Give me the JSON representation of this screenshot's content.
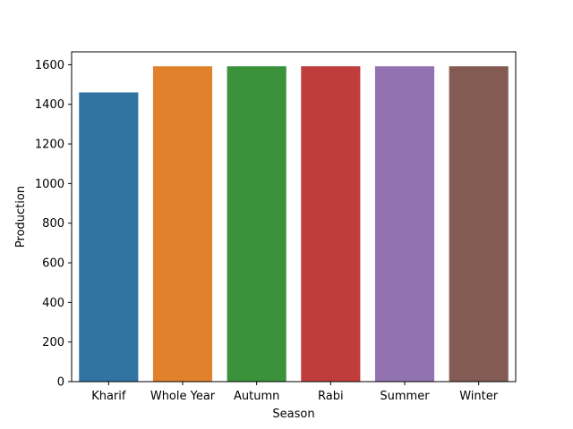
{
  "chart_data": {
    "type": "bar",
    "title": "",
    "xlabel": "Season",
    "ylabel": "Production",
    "categories": [
      "Kharif",
      "Whole Year",
      "Autumn",
      "Rabi",
      "Summer",
      "Winter"
    ],
    "values": [
      1460,
      1592,
      1592,
      1592,
      1592,
      1592
    ],
    "colors": [
      "#3274a1",
      "#e1812c",
      "#3a923a",
      "#c03d3e",
      "#9372b2",
      "#845b53"
    ],
    "ylim": [
      0,
      1665
    ],
    "yticks": [
      0,
      200,
      400,
      600,
      800,
      1000,
      1200,
      1400,
      1600
    ],
    "grid": false,
    "legend": "none"
  }
}
